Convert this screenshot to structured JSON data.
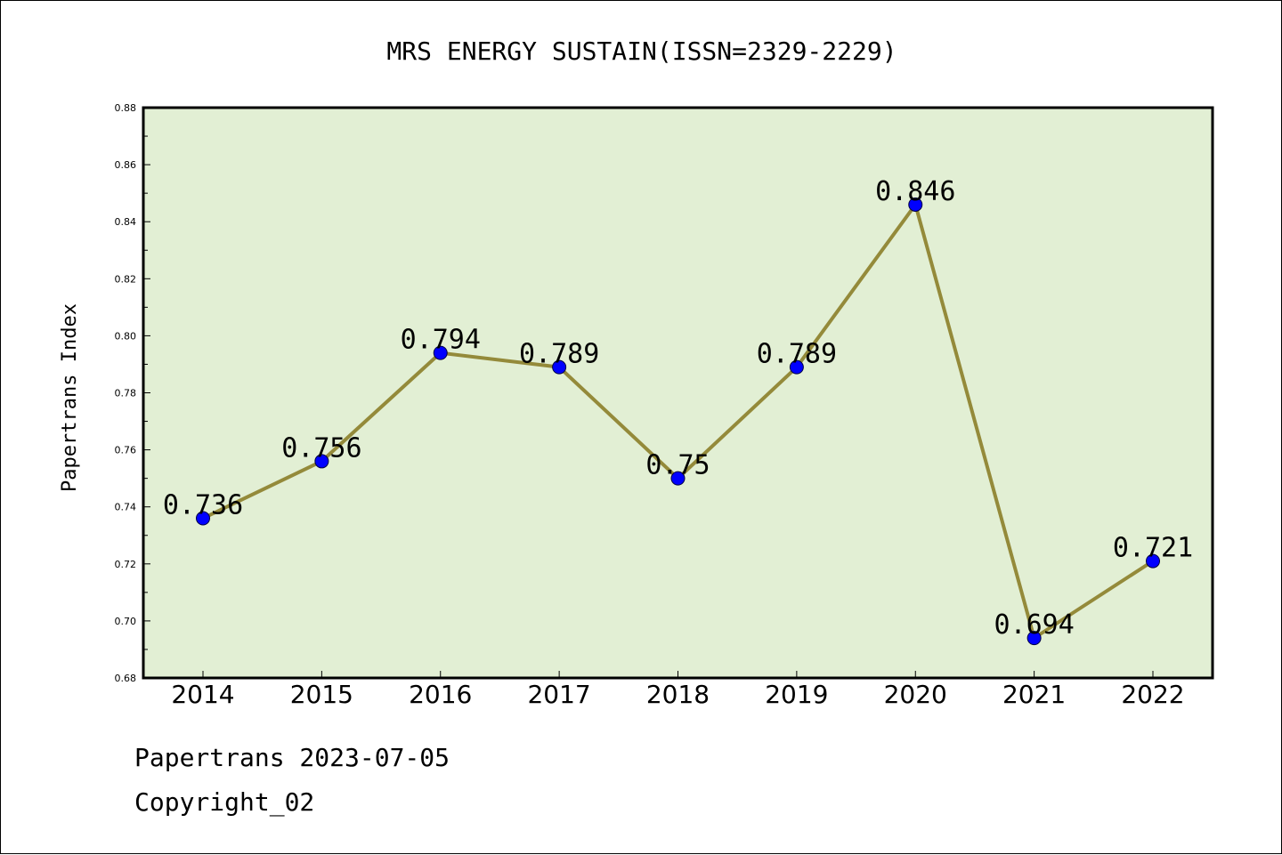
{
  "footer": {
    "line1": "Papertrans 2023-07-05",
    "line2": "Copyright_02"
  },
  "colors": {
    "plot_background": "#e2efd4",
    "line": "#948a3a",
    "marker": "#0000ff",
    "axes": "#000000"
  },
  "chart_data": {
    "type": "line",
    "title": "MRS ENERGY SUSTAIN(ISSN=2329-2229)",
    "xlabel": "",
    "ylabel": "Papertrans Index",
    "categories": [
      "2014",
      "2015",
      "2016",
      "2017",
      "2018",
      "2019",
      "2020",
      "2021",
      "2022"
    ],
    "series": [
      {
        "values": [
          0.736,
          0.756,
          0.794,
          0.789,
          0.75,
          0.789,
          0.846,
          0.694,
          0.721
        ],
        "labels": [
          "0.736",
          "0.756",
          "0.794",
          "0.789",
          "0.75",
          "0.789",
          "0.846",
          "0.694",
          "0.721"
        ]
      }
    ],
    "ylim": [
      0.68,
      0.88
    ],
    "yticks": [
      "0.68",
      "0.70",
      "0.72",
      "0.74",
      "0.76",
      "0.78",
      "0.80",
      "0.82",
      "0.84",
      "0.86",
      "0.88"
    ],
    "grid": false,
    "legend": "none"
  }
}
